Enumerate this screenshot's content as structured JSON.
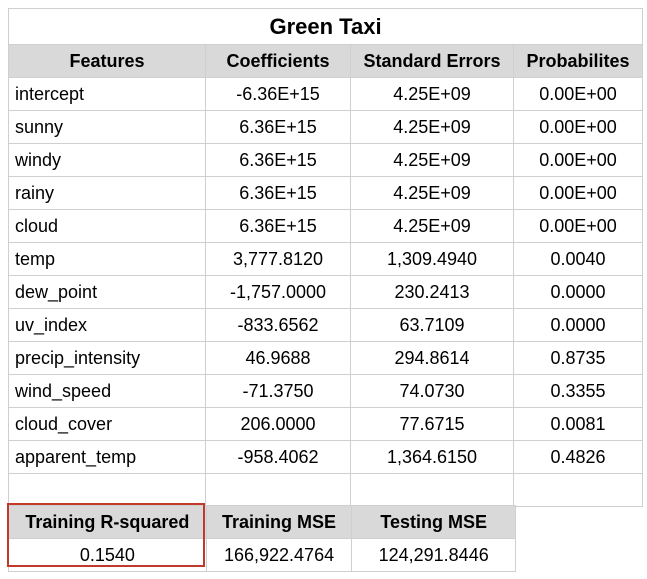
{
  "title": "Green Taxi",
  "columns": [
    "Features",
    "Coefficients",
    "Standard Errors",
    "Probabilites"
  ],
  "rows": [
    {
      "feature": "intercept",
      "coef": "-6.36E+15",
      "se": "4.25E+09",
      "p": "0.00E+00"
    },
    {
      "feature": "sunny",
      "coef": "6.36E+15",
      "se": "4.25E+09",
      "p": "0.00E+00"
    },
    {
      "feature": "windy",
      "coef": "6.36E+15",
      "se": "4.25E+09",
      "p": "0.00E+00"
    },
    {
      "feature": "rainy",
      "coef": "6.36E+15",
      "se": "4.25E+09",
      "p": "0.00E+00"
    },
    {
      "feature": "cloud",
      "coef": "6.36E+15",
      "se": "4.25E+09",
      "p": "0.00E+00"
    },
    {
      "feature": "temp",
      "coef": "3,777.8120",
      "se": "1,309.4940",
      "p": "0.0040"
    },
    {
      "feature": "dew_point",
      "coef": "-1,757.0000",
      "se": "230.2413",
      "p": "0.0000"
    },
    {
      "feature": "uv_index",
      "coef": "-833.6562",
      "se": "63.7109",
      "p": "0.0000"
    },
    {
      "feature": "precip_intensity",
      "coef": "46.9688",
      "se": "294.8614",
      "p": "0.8735"
    },
    {
      "feature": "wind_speed",
      "coef": "-71.3750",
      "se": "74.0730",
      "p": "0.3355"
    },
    {
      "feature": "cloud_cover",
      "coef": "206.0000",
      "se": "77.6715",
      "p": "0.0081"
    },
    {
      "feature": "apparent_temp",
      "coef": "-958.4062",
      "se": "1,364.6150",
      "p": "0.4826"
    }
  ],
  "metrics": {
    "headers": [
      "Training R-squared",
      "Training MSE",
      "Testing MSE"
    ],
    "values": [
      "0.1540",
      "166,922.4764",
      "124,291.8446"
    ]
  },
  "colors": {
    "header_bg": "#d9d9d9",
    "grid": "#cfcfcf",
    "highlight": "#c0392b"
  }
}
